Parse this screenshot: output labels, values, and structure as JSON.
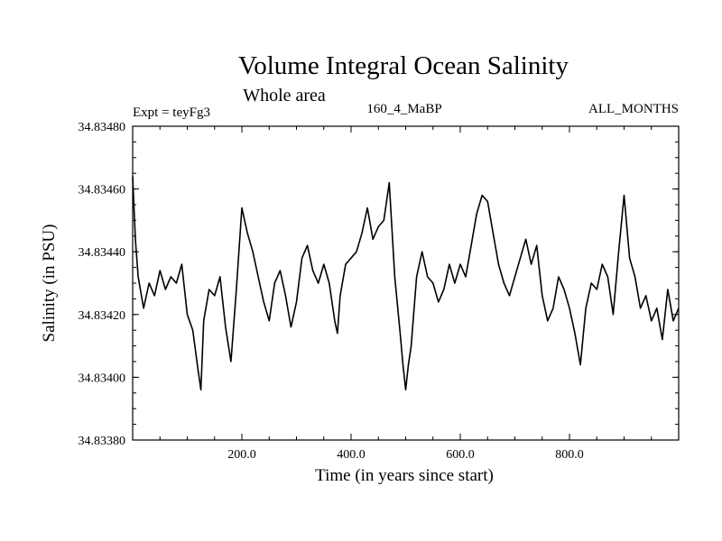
{
  "chart_data": {
    "type": "line",
    "title": "Volume Integral Ocean Salinity",
    "subtitle": "Whole area",
    "expt_label": "Expt = teyFg3",
    "run_label": "160_4_MaBP",
    "months_label": "ALL_MONTHS",
    "xlabel": "Time (in years since start)",
    "ylabel": "Salinity (in PSU)",
    "xlim": [
      0,
      1000
    ],
    "ylim": [
      34.8338,
      34.8348
    ],
    "x_ticks": [
      200,
      400,
      600,
      800
    ],
    "x_tick_labels": [
      "200.0",
      "400.0",
      "600.0",
      "800.0"
    ],
    "y_ticks": [
      34.8338,
      34.834,
      34.8342,
      34.8344,
      34.8346,
      34.8348
    ],
    "y_tick_labels": [
      "34.83380",
      "34.83400",
      "34.83420",
      "34.83440",
      "34.83460",
      "34.83480"
    ],
    "grid": false,
    "series": [
      {
        "name": "Salinity",
        "x": [
          0,
          5,
          10,
          20,
          30,
          40,
          50,
          60,
          70,
          80,
          90,
          100,
          110,
          120,
          125,
          130,
          140,
          150,
          160,
          170,
          180,
          190,
          200,
          205,
          210,
          220,
          230,
          240,
          250,
          260,
          270,
          280,
          290,
          300,
          310,
          320,
          330,
          340,
          350,
          360,
          370,
          375,
          380,
          390,
          400,
          410,
          420,
          430,
          440,
          450,
          460,
          470,
          480,
          490,
          495,
          500,
          505,
          510,
          520,
          530,
          540,
          550,
          560,
          570,
          580,
          590,
          600,
          610,
          620,
          630,
          640,
          650,
          660,
          670,
          680,
          690,
          700,
          710,
          720,
          730,
          740,
          750,
          760,
          770,
          780,
          790,
          800,
          810,
          820,
          830,
          840,
          850,
          860,
          870,
          880,
          890,
          900,
          910,
          920,
          930,
          940,
          950,
          960,
          970,
          980,
          990,
          1000
        ],
        "values": [
          34.83464,
          34.83444,
          34.83432,
          34.83422,
          34.8343,
          34.83426,
          34.83434,
          34.83428,
          34.83432,
          34.8343,
          34.83436,
          34.8342,
          34.83415,
          34.83402,
          34.83396,
          34.83418,
          34.83428,
          34.83426,
          34.83432,
          34.83416,
          34.83405,
          34.83428,
          34.83454,
          34.8345,
          34.83446,
          34.8344,
          34.83432,
          34.83424,
          34.83418,
          34.8343,
          34.83434,
          34.83426,
          34.83416,
          34.83424,
          34.83438,
          34.83442,
          34.83434,
          34.8343,
          34.83436,
          34.8343,
          34.83418,
          34.83414,
          34.83426,
          34.83436,
          34.83438,
          34.8344,
          34.83446,
          34.83454,
          34.83444,
          34.83448,
          34.8345,
          34.83462,
          34.83432,
          34.83414,
          34.83404,
          34.83396,
          34.83404,
          34.8341,
          34.83432,
          34.8344,
          34.83432,
          34.8343,
          34.83424,
          34.83428,
          34.83436,
          34.8343,
          34.83436,
          34.83432,
          34.83442,
          34.83452,
          34.83458,
          34.83456,
          34.83446,
          34.83436,
          34.8343,
          34.83426,
          34.83432,
          34.83438,
          34.83444,
          34.83436,
          34.83442,
          34.83426,
          34.83418,
          34.83422,
          34.83432,
          34.83428,
          34.83422,
          34.83414,
          34.83404,
          34.83422,
          34.8343,
          34.83428,
          34.83436,
          34.83432,
          34.8342,
          34.8344,
          34.83458,
          34.83438,
          34.83432,
          34.83422,
          34.83426,
          34.83418,
          34.83422,
          34.83412,
          34.83428,
          34.83418,
          34.83422
        ]
      }
    ]
  }
}
